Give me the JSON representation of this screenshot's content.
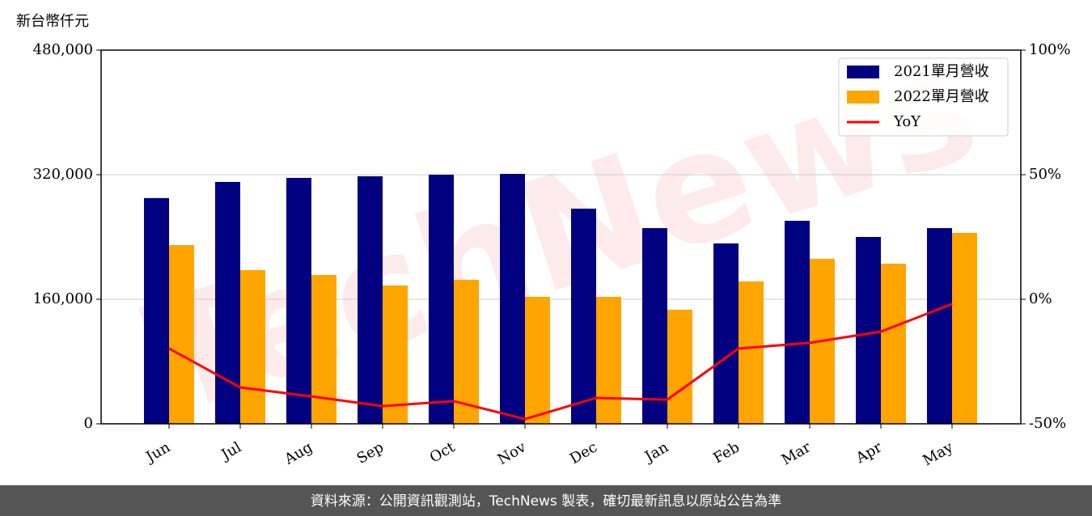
{
  "chart_data": {
    "type": "bar_line",
    "y_label": "新台幣仟元",
    "watermark": "TechNews",
    "footer": "資料來源：公開資訊觀測站，TechNews 製表，確切最新訊息以原站公告為準",
    "categories": [
      "Jun",
      "Jul",
      "Aug",
      "Sep",
      "Oct",
      "Nov",
      "Dec",
      "Jan",
      "Feb",
      "Mar",
      "Apr",
      "May"
    ],
    "series": [
      {
        "name": "2021單月營收",
        "color": "#000080",
        "kind": "bar",
        "values": [
          290000,
          310700,
          315900,
          318000,
          320000,
          321000,
          276400,
          251400,
          231700,
          260800,
          240000,
          251400
        ]
      },
      {
        "name": "2022單月營收",
        "color": "#ffa500",
        "kind": "bar",
        "values": [
          229600,
          197400,
          191200,
          177700,
          185000,
          163100,
          163100,
          146500,
          182900,
          212000,
          205700,
          245200
        ]
      },
      {
        "name": "YoY",
        "color": "#ff0000",
        "kind": "line",
        "axis": "y2",
        "values": [
          -19.8,
          -35.4,
          -39.0,
          -42.9,
          -40.9,
          -48.1,
          -39.6,
          -40.3,
          -19.8,
          -17.5,
          -13.0,
          -1.9
        ]
      }
    ],
    "ylim": [
      0,
      480000
    ],
    "yticks": [
      {
        "value": 0,
        "label": "0"
      },
      {
        "value": 160000,
        "label": "160,000"
      },
      {
        "value": 320000,
        "label": "320,000"
      },
      {
        "value": 480000,
        "label": "480,000"
      }
    ],
    "y2lim": [
      -50,
      100
    ],
    "y2ticks": [
      {
        "value": -50,
        "label": "-50%"
      },
      {
        "value": 0,
        "label": "0%"
      },
      {
        "value": 50,
        "label": "50%"
      },
      {
        "value": 100,
        "label": "100%"
      }
    ],
    "grid": true,
    "legend": "upper right"
  }
}
